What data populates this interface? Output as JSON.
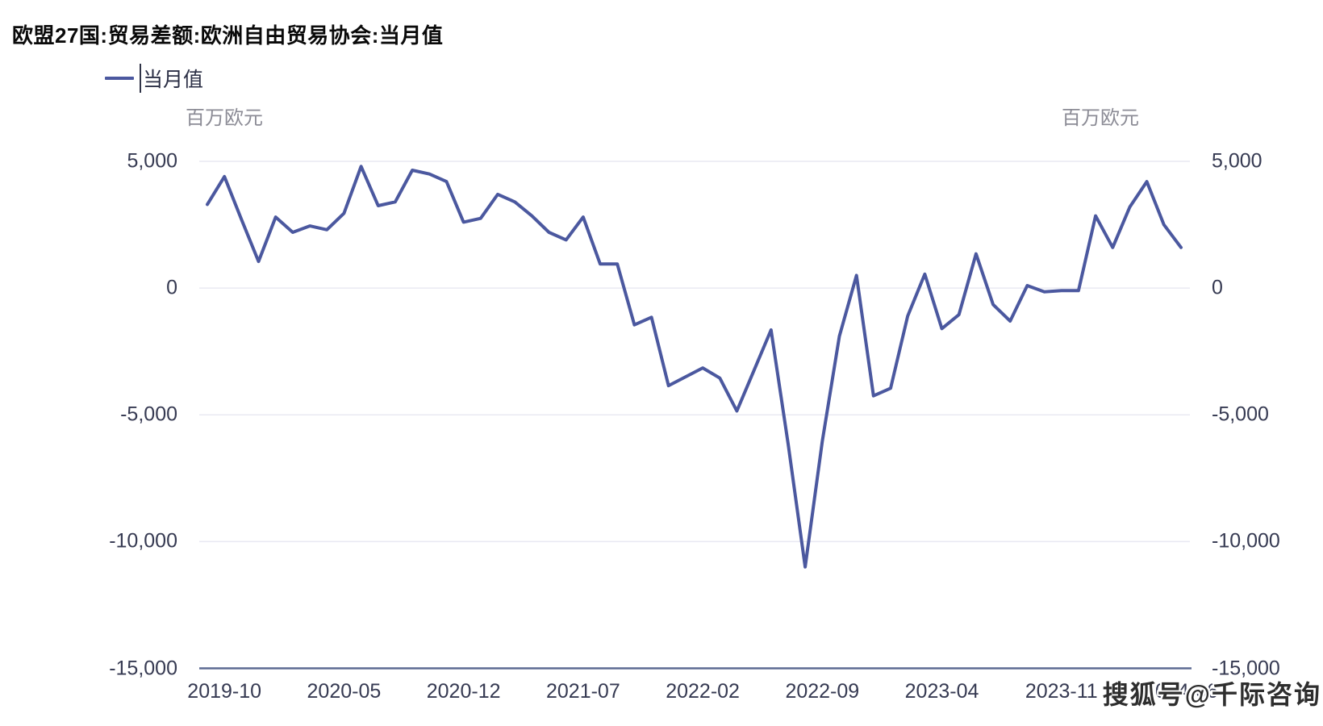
{
  "title": "欧盟27国:贸易差额:欧洲自由贸易协会:当月值",
  "legend": {
    "label": "当月值"
  },
  "watermark": "搜狐号@千际咨询",
  "chart_data": {
    "type": "line",
    "title": "欧盟27国:贸易差额:欧洲自由贸易协会:当月值",
    "series_name": "当月值",
    "unit_left": "百万欧元",
    "unit_right": "百万欧元",
    "line_color": "#4b589f",
    "grid": true,
    "legend_position": "top-left",
    "ylim": [
      -15000,
      5000
    ],
    "yticks": [
      "5,000",
      "0",
      "-5,000",
      "-10,000",
      "-15,000"
    ],
    "ytick_values": [
      5000,
      0,
      -5000,
      -10000,
      -15000
    ],
    "xticks": [
      "2019-10",
      "2020-05",
      "2020-12",
      "2021-07",
      "2022-02",
      "2022-09",
      "2023-04",
      "2023-11",
      "2024-06"
    ],
    "xtick_month_indices": [
      1,
      8,
      15,
      22,
      29,
      36,
      43,
      50,
      57
    ],
    "x": [
      "2019-09",
      "2019-10",
      "2019-11",
      "2019-12",
      "2020-01",
      "2020-02",
      "2020-03",
      "2020-04",
      "2020-05",
      "2020-06",
      "2020-07",
      "2020-08",
      "2020-09",
      "2020-10",
      "2020-11",
      "2020-12",
      "2021-01",
      "2021-02",
      "2021-03",
      "2021-04",
      "2021-05",
      "2021-06",
      "2021-07",
      "2021-08",
      "2021-09",
      "2021-10",
      "2021-11",
      "2021-12",
      "2022-01",
      "2022-02",
      "2022-03",
      "2022-04",
      "2022-05",
      "2022-06",
      "2022-07",
      "2022-08",
      "2022-09",
      "2022-10",
      "2022-11",
      "2022-12",
      "2023-01",
      "2023-02",
      "2023-03",
      "2023-04",
      "2023-05",
      "2023-06",
      "2023-07",
      "2023-08",
      "2023-09",
      "2023-10",
      "2023-11",
      "2023-12",
      "2024-01",
      "2024-02",
      "2024-03",
      "2024-04",
      "2024-05",
      "2024-06"
    ],
    "values": [
      3300,
      4400,
      2700,
      1050,
      2800,
      2200,
      2450,
      2300,
      2950,
      4800,
      3250,
      3400,
      4650,
      4500,
      4200,
      2600,
      2750,
      3700,
      3400,
      2850,
      2200,
      1900,
      2800,
      950,
      950,
      -1450,
      -1150,
      -3850,
      -3500,
      -3150,
      -3550,
      -4850,
      -3250,
      -1650,
      -6150,
      -11000,
      -6050,
      -1900,
      500,
      -4250,
      -3950,
      -1100,
      550,
      -1600,
      -1050,
      1350,
      -650,
      -1300,
      100,
      -150,
      -100,
      -100,
      2850,
      1600,
      3200,
      4200,
      2500,
      1600
    ]
  }
}
